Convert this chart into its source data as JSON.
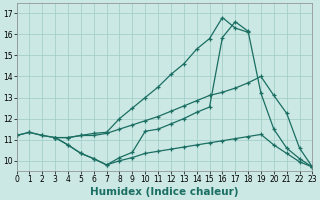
{
  "series": [
    {
      "x": [
        3,
        4,
        5,
        6,
        7,
        8,
        9,
        10,
        11,
        12,
        13,
        14,
        15,
        16,
        17,
        18
      ],
      "y": [
        11.1,
        11.1,
        11.2,
        11.3,
        11.35,
        12.0,
        12.5,
        13.0,
        13.5,
        14.1,
        14.6,
        15.3,
        15.8,
        16.8,
        16.3,
        16.1
      ]
    },
    {
      "x": [
        3,
        4,
        5,
        6,
        7,
        8,
        9,
        10,
        11,
        12,
        13,
        14,
        15,
        16,
        17,
        18,
        19,
        20,
        21,
        22,
        23
      ],
      "y": [
        11.1,
        11.1,
        11.2,
        11.2,
        11.3,
        11.5,
        11.7,
        11.9,
        12.1,
        12.35,
        12.6,
        12.85,
        13.1,
        13.25,
        13.45,
        13.7,
        14.0,
        13.1,
        12.25,
        10.6,
        9.7
      ]
    },
    {
      "x": [
        0,
        1,
        2,
        3,
        4,
        5,
        6,
        7,
        8,
        9,
        10,
        11,
        12,
        13,
        14,
        15,
        16,
        17,
        18,
        19,
        20,
        21,
        22,
        23
      ],
      "y": [
        11.2,
        11.35,
        11.2,
        11.1,
        10.75,
        10.35,
        10.1,
        9.8,
        10.15,
        10.4,
        11.4,
        11.5,
        11.75,
        12.0,
        12.3,
        12.55,
        15.85,
        16.6,
        16.15,
        13.2,
        11.5,
        10.6,
        10.1,
        9.7
      ]
    },
    {
      "x": [
        0,
        1,
        2,
        3,
        4,
        5,
        6,
        7,
        8,
        9,
        10,
        11,
        12,
        13,
        14,
        15,
        16,
        17,
        18,
        19,
        20,
        21,
        22,
        23
      ],
      "y": [
        11.2,
        11.35,
        11.2,
        11.1,
        10.75,
        10.35,
        10.1,
        9.8,
        10.0,
        10.15,
        10.35,
        10.45,
        10.55,
        10.65,
        10.75,
        10.85,
        10.95,
        11.05,
        11.15,
        11.25,
        10.75,
        10.35,
        9.95,
        9.7
      ]
    }
  ],
  "xlim": [
    0,
    23
  ],
  "ylim": [
    9.5,
    17.5
  ],
  "xticks": [
    0,
    1,
    2,
    3,
    4,
    5,
    6,
    7,
    8,
    9,
    10,
    11,
    12,
    13,
    14,
    15,
    16,
    17,
    18,
    19,
    20,
    21,
    22,
    23
  ],
  "yticks": [
    10,
    11,
    12,
    13,
    14,
    15,
    16,
    17
  ],
  "ytick_labels": [
    "10",
    "11",
    "12",
    "13",
    "14",
    "15",
    "16",
    "17"
  ],
  "xlabel": "Humidex (Indice chaleur)",
  "bg_color": "#cce8e4",
  "grid_color": "#9eccc6",
  "line_color": "#1a6e62",
  "tick_fontsize": 5.5,
  "label_fontsize": 7.5,
  "figwidth": 3.2,
  "figheight": 2.0,
  "dpi": 100
}
